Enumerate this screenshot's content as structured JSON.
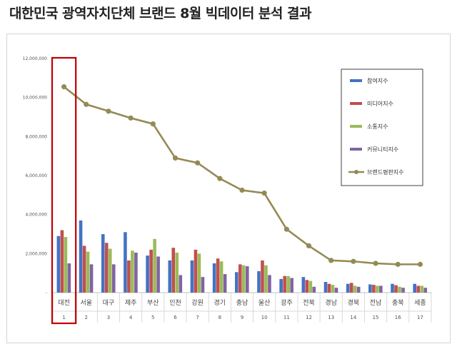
{
  "page": {
    "title": "대한민국 광역자치단체 브랜드 8월 빅데이터 분석 결과"
  },
  "chart_data": {
    "type": "bar",
    "title": "",
    "xlabel": "",
    "ylabel": "",
    "ylim": [
      0,
      12000000
    ],
    "yticks": [
      "12,000,000",
      "10,000,000",
      "8,000,000",
      "6,000,000",
      "4,000,000",
      "2,000,000",
      "-"
    ],
    "ytick_values": [
      12000000,
      10000000,
      8000000,
      6000000,
      4000000,
      2000000,
      0
    ],
    "categories": [
      "대전",
      "서울",
      "대구",
      "제주",
      "부산",
      "인천",
      "강원",
      "경기",
      "충남",
      "울산",
      "광주",
      "전북",
      "경남",
      "경북",
      "전남",
      "충북",
      "세종"
    ],
    "ranks": [
      "1",
      "2",
      "3",
      "4",
      "5",
      "6",
      "7",
      "8",
      "9",
      "10",
      "11",
      "12",
      "13",
      "14",
      "15",
      "16",
      "17"
    ],
    "highlighted_category": "대전",
    "grid": false,
    "legend_position": "top-right",
    "series": [
      {
        "name": "참여지수",
        "type": "bar",
        "color": "#4472c4",
        "values": [
          2900000,
          3700000,
          3000000,
          3100000,
          1900000,
          1650000,
          1650000,
          1500000,
          1050000,
          1100000,
          700000,
          800000,
          550000,
          450000,
          420000,
          450000,
          450000
        ]
      },
      {
        "name": "미디어지수",
        "type": "bar",
        "color": "#c0504d",
        "values": [
          3200000,
          2400000,
          2550000,
          1650000,
          2200000,
          2300000,
          2200000,
          1750000,
          1450000,
          1650000,
          850000,
          650000,
          450000,
          500000,
          400000,
          380000,
          350000
        ]
      },
      {
        "name": "소통지수",
        "type": "bar",
        "color": "#9bbb59",
        "values": [
          2850000,
          2100000,
          2250000,
          2150000,
          2750000,
          2050000,
          2000000,
          1600000,
          1400000,
          1400000,
          850000,
          600000,
          400000,
          350000,
          350000,
          300000,
          350000
        ]
      },
      {
        "name": "커뮤니티지수",
        "type": "bar",
        "color": "#8064a2",
        "values": [
          1500000,
          1450000,
          1450000,
          2050000,
          1850000,
          900000,
          800000,
          950000,
          1350000,
          900000,
          750000,
          300000,
          250000,
          300000,
          350000,
          250000,
          250000
        ]
      },
      {
        "name": "브랜드평판지수",
        "type": "line",
        "color": "#948a54",
        "values": [
          10550000,
          9650000,
          9300000,
          8950000,
          8650000,
          6900000,
          6650000,
          5850000,
          5250000,
          5100000,
          3250000,
          2400000,
          1650000,
          1600000,
          1500000,
          1450000,
          1450000
        ]
      }
    ]
  }
}
